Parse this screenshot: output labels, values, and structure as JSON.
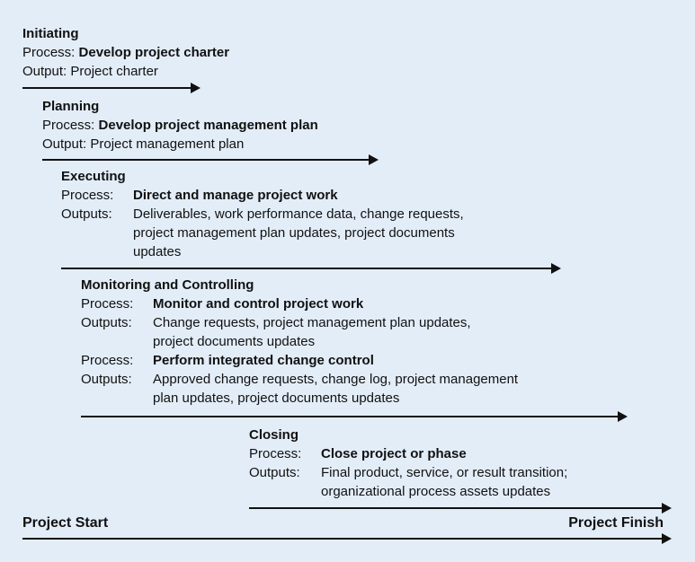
{
  "phases": {
    "initiating": {
      "title": "Initiating",
      "process_label": "Process:",
      "process": "Develop project charter",
      "output_label": "Output:",
      "output_lines": [
        "Project charter"
      ]
    },
    "planning": {
      "title": "Planning",
      "process_label": "Process:",
      "process": "Develop project management plan",
      "output_label": "Output:",
      "output_lines": [
        "Project management plan"
      ]
    },
    "executing": {
      "title": "Executing",
      "process_label": "Process:",
      "process": "Direct and manage project work",
      "output_label": "Outputs:",
      "output_lines": [
        "Deliverables, work performance data, change requests,",
        "project management plan updates, project documents",
        "updates"
      ]
    },
    "monitoring": {
      "title": "Monitoring and Controlling",
      "process1_label": "Process:",
      "process1": "Monitor and control project work",
      "output1_label": "Outputs:",
      "output1_lines": [
        "Change requests, project management plan updates,",
        "project documents updates"
      ],
      "process2_label": "Process:",
      "process2": "Perform integrated change control",
      "output2_label": "Outputs:",
      "output2_lines": [
        "Approved change requests, change log, project management",
        "plan updates, project documents updates"
      ]
    },
    "closing": {
      "title": "Closing",
      "process_label": "Process:",
      "process": "Close project or phase",
      "output_label": "Outputs:",
      "output_lines": [
        "Final product, service, or result transition;",
        "organizational process assets updates"
      ]
    }
  },
  "timeline": {
    "start_label": "Project Start",
    "finish_label": "Project Finish"
  }
}
